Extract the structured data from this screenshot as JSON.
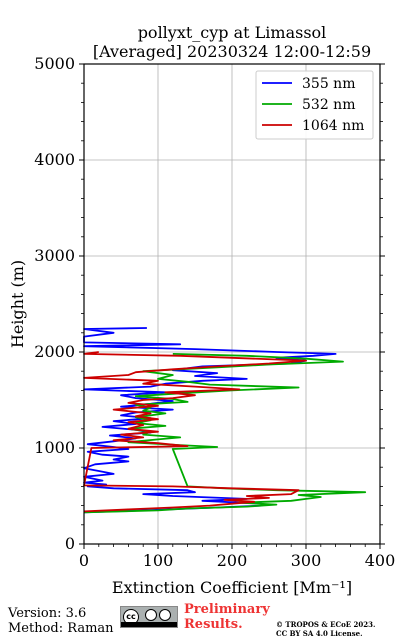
{
  "chart_data": {
    "type": "line",
    "title": [
      "pollyxt_cyp at Limassol",
      "[Averaged] 20230324 12:00-12:59"
    ],
    "xlabel": "Extinction Coefficient [Mm⁻¹]",
    "ylabel": "Height (m)",
    "xlim": [
      0,
      400
    ],
    "ylim": [
      0,
      5000
    ],
    "x_ticks": [
      "0",
      "100",
      "200",
      "300",
      "400"
    ],
    "y_ticks": [
      "0",
      "1000",
      "2000",
      "3000",
      "4000",
      "5000"
    ],
    "grid": true,
    "legend_position": "top-right",
    "series": [
      {
        "name": "355 nm",
        "color": "#0000ff",
        "points": [
          [
            0,
            330
          ],
          [
            80,
            350
          ],
          [
            180,
            380
          ],
          [
            240,
            400
          ],
          [
            240,
            420
          ],
          [
            160,
            450
          ],
          [
            220,
            470
          ],
          [
            120,
            500
          ],
          [
            80,
            520
          ],
          [
            150,
            540
          ],
          [
            140,
            560
          ],
          [
            40,
            580
          ],
          [
            5,
            600
          ],
          [
            30,
            620
          ],
          [
            0,
            640
          ],
          [
            25,
            660
          ],
          [
            0,
            700
          ],
          [
            40,
            730
          ],
          [
            20,
            760
          ],
          [
            0,
            790
          ],
          [
            15,
            830
          ],
          [
            60,
            860
          ],
          [
            40,
            880
          ],
          [
            60,
            910
          ],
          [
            25,
            930
          ],
          [
            5,
            960
          ],
          [
            60,
            990
          ],
          [
            40,
            1010
          ],
          [
            5,
            1040
          ],
          [
            40,
            1070
          ],
          [
            70,
            1100
          ],
          [
            35,
            1130
          ],
          [
            90,
            1160
          ],
          [
            70,
            1190
          ],
          [
            25,
            1220
          ],
          [
            70,
            1250
          ],
          [
            40,
            1280
          ],
          [
            90,
            1310
          ],
          [
            50,
            1340
          ],
          [
            70,
            1370
          ],
          [
            120,
            1400
          ],
          [
            50,
            1430
          ],
          [
            90,
            1460
          ],
          [
            120,
            1490
          ],
          [
            70,
            1520
          ],
          [
            50,
            1550
          ],
          [
            110,
            1580
          ],
          [
            0,
            1610
          ],
          [
            90,
            1640
          ],
          [
            110,
            1670
          ],
          [
            160,
            1700
          ],
          [
            220,
            1720
          ],
          [
            150,
            1750
          ],
          [
            180,
            1780
          ],
          [
            120,
            1810
          ],
          [
            160,
            1850
          ],
          [
            280,
            1880
          ],
          [
            300,
            1910
          ],
          [
            260,
            1940
          ],
          [
            310,
            1960
          ],
          [
            340,
            1980
          ],
          [
            260,
            2000
          ],
          [
            150,
            2030
          ],
          [
            0,
            2060
          ],
          [
            130,
            2080
          ],
          [
            0,
            2100
          ],
          [
            0,
            2160
          ],
          [
            40,
            2200
          ],
          [
            0,
            2240
          ],
          [
            85,
            2250
          ]
        ]
      },
      {
        "name": "532 nm",
        "color": "#00aa00",
        "points": [
          [
            0,
            330
          ],
          [
            100,
            350
          ],
          [
            140,
            370
          ],
          [
            220,
            390
          ],
          [
            260,
            410
          ],
          [
            210,
            430
          ],
          [
            280,
            450
          ],
          [
            300,
            470
          ],
          [
            320,
            490
          ],
          [
            290,
            510
          ],
          [
            380,
            540
          ],
          [
            260,
            560
          ],
          [
            190,
            580
          ],
          [
            140,
            600
          ],
          [
            120,
            990
          ],
          [
            180,
            1010
          ],
          [
            130,
            1030
          ],
          [
            60,
            1060
          ],
          [
            100,
            1090
          ],
          [
            130,
            1110
          ],
          [
            80,
            1140
          ],
          [
            90,
            1170
          ],
          [
            60,
            1200
          ],
          [
            110,
            1230
          ],
          [
            70,
            1260
          ],
          [
            90,
            1290
          ],
          [
            70,
            1320
          ],
          [
            110,
            1360
          ],
          [
            80,
            1390
          ],
          [
            90,
            1420
          ],
          [
            70,
            1450
          ],
          [
            140,
            1480
          ],
          [
            120,
            1510
          ],
          [
            70,
            1540
          ],
          [
            130,
            1570
          ],
          [
            200,
            1600
          ],
          [
            290,
            1630
          ],
          [
            170,
            1660
          ],
          [
            140,
            1690
          ],
          [
            100,
            1720
          ],
          [
            120,
            1760
          ],
          [
            80,
            1800
          ],
          [
            180,
            1840
          ],
          [
            250,
            1870
          ],
          [
            350,
            1900
          ],
          [
            300,
            1930
          ],
          [
            220,
            1960
          ],
          [
            120,
            1980
          ]
        ]
      },
      {
        "name": "1064 nm",
        "color": "#cc0000",
        "points": [
          [
            0,
            340
          ],
          [
            60,
            360
          ],
          [
            120,
            380
          ],
          [
            170,
            400
          ],
          [
            200,
            420
          ],
          [
            230,
            440
          ],
          [
            190,
            460
          ],
          [
            250,
            480
          ],
          [
            220,
            500
          ],
          [
            280,
            520
          ],
          [
            290,
            560
          ],
          [
            200,
            580
          ],
          [
            120,
            600
          ],
          [
            0,
            610
          ],
          [
            10,
            1000
          ],
          [
            140,
            1020
          ],
          [
            100,
            1050
          ],
          [
            40,
            1080
          ],
          [
            80,
            1110
          ],
          [
            50,
            1140
          ],
          [
            100,
            1170
          ],
          [
            60,
            1200
          ],
          [
            80,
            1240
          ],
          [
            60,
            1270
          ],
          [
            100,
            1300
          ],
          [
            70,
            1330
          ],
          [
            90,
            1360
          ],
          [
            40,
            1400
          ],
          [
            100,
            1440
          ],
          [
            60,
            1470
          ],
          [
            80,
            1500
          ],
          [
            120,
            1520
          ],
          [
            150,
            1550
          ],
          [
            110,
            1580
          ],
          [
            210,
            1610
          ],
          [
            150,
            1640
          ],
          [
            80,
            1670
          ],
          [
            100,
            1700
          ],
          [
            0,
            1730
          ],
          [
            60,
            1760
          ],
          [
            70,
            1790
          ],
          [
            120,
            1820
          ],
          [
            180,
            1850
          ],
          [
            250,
            1880
          ],
          [
            300,
            1910
          ],
          [
            200,
            1940
          ],
          [
            130,
            1960
          ],
          [
            0,
            1980
          ],
          [
            20,
            2000
          ]
        ]
      }
    ]
  },
  "footer": {
    "version": "Version: 3.6",
    "method": "Method: Raman",
    "preliminary": [
      "Preliminary",
      "Results."
    ],
    "copyright": [
      "© TROPOS & ECoE 2023.",
      "CC BY SA 4.0 License."
    ],
    "license_badge": "cc-by-sa"
  }
}
